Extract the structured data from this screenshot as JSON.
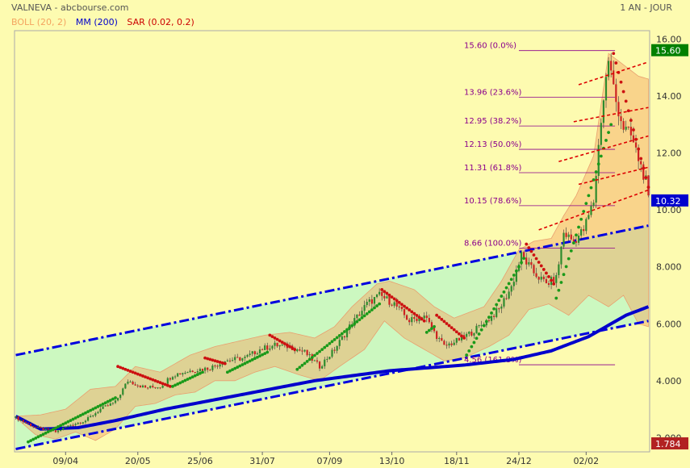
{
  "header": {
    "title": "VALNEVA - abcbourse.com",
    "period": "1 AN - JOUR"
  },
  "legend": [
    {
      "label": "BOLL (20, 2)",
      "color": "#f4a460"
    },
    {
      "label": "MM (200)",
      "color": "#0000cc"
    },
    {
      "label": "SAR (0.02, 0.2)",
      "color": "#cc0000"
    }
  ],
  "chart_data": {
    "type": "candlestick",
    "ylim": [
      1.5,
      16.3
    ],
    "y_ticks": [
      "16.00",
      "14.00",
      "12.00",
      "10.00",
      "8.000",
      "6.000",
      "4.000",
      "2.000"
    ],
    "y_tick_values": [
      16,
      14,
      12,
      10,
      8,
      6,
      4,
      2
    ],
    "x_ticks": [
      "09/04",
      "20/05",
      "25/06",
      "31/07",
      "07/09",
      "13/10",
      "18/11",
      "24/12",
      "02/02"
    ],
    "x_tick_index": [
      20,
      49,
      74,
      99,
      126,
      151,
      177,
      202,
      229
    ],
    "n_sessions": 255,
    "close_key": [
      [
        0,
        2.7
      ],
      [
        8,
        2.35
      ],
      [
        16,
        2.2
      ],
      [
        22,
        2.45
      ],
      [
        28,
        2.6
      ],
      [
        34,
        3.0
      ],
      [
        40,
        3.25
      ],
      [
        45,
        4.0
      ],
      [
        52,
        3.75
      ],
      [
        58,
        3.8
      ],
      [
        63,
        4.2
      ],
      [
        70,
        4.35
      ],
      [
        78,
        4.45
      ],
      [
        84,
        4.7
      ],
      [
        92,
        4.8
      ],
      [
        98,
        5.1
      ],
      [
        104,
        5.25
      ],
      [
        110,
        5.2
      ],
      [
        116,
        5.0
      ],
      [
        122,
        4.5
      ],
      [
        128,
        5.1
      ],
      [
        134,
        5.9
      ],
      [
        141,
        6.7
      ],
      [
        146,
        7.0
      ],
      [
        152,
        6.7
      ],
      [
        158,
        6.1
      ],
      [
        164,
        6.3
      ],
      [
        168,
        5.7
      ],
      [
        172,
        5.2
      ],
      [
        177,
        5.4
      ],
      [
        183,
        5.7
      ],
      [
        189,
        6.1
      ],
      [
        194,
        6.5
      ],
      [
        199,
        7.3
      ],
      [
        203,
        8.4
      ],
      [
        208,
        7.8
      ],
      [
        213,
        7.4
      ],
      [
        217,
        7.6
      ],
      [
        220,
        9.2
      ],
      [
        224,
        8.9
      ],
      [
        228,
        9.3
      ],
      [
        232,
        10.3
      ],
      [
        235,
        13.2
      ],
      [
        238,
        15.3
      ],
      [
        241,
        13.8
      ],
      [
        244,
        12.9
      ],
      [
        247,
        12.6
      ],
      [
        250,
        11.8
      ],
      [
        253,
        11.0
      ],
      [
        254,
        10.32
      ]
    ],
    "mm200_key": [
      [
        0,
        2.75
      ],
      [
        10,
        2.3
      ],
      [
        25,
        2.35
      ],
      [
        40,
        2.6
      ],
      [
        60,
        3.0
      ],
      [
        90,
        3.5
      ],
      [
        120,
        4.0
      ],
      [
        150,
        4.35
      ],
      [
        180,
        4.55
      ],
      [
        200,
        4.75
      ],
      [
        215,
        5.05
      ],
      [
        230,
        5.55
      ],
      [
        245,
        6.3
      ],
      [
        254,
        6.6
      ]
    ],
    "boll_upper_key": [
      [
        0,
        2.75
      ],
      [
        10,
        2.8
      ],
      [
        20,
        3.0
      ],
      [
        30,
        3.7
      ],
      [
        40,
        3.8
      ],
      [
        48,
        4.5
      ],
      [
        58,
        4.3
      ],
      [
        70,
        4.9
      ],
      [
        80,
        5.2
      ],
      [
        90,
        5.4
      ],
      [
        100,
        5.6
      ],
      [
        110,
        5.7
      ],
      [
        120,
        5.5
      ],
      [
        128,
        5.9
      ],
      [
        135,
        6.6
      ],
      [
        145,
        7.4
      ],
      [
        150,
        7.5
      ],
      [
        160,
        7.2
      ],
      [
        168,
        6.6
      ],
      [
        176,
        6.2
      ],
      [
        188,
        6.6
      ],
      [
        195,
        7.5
      ],
      [
        202,
        8.6
      ],
      [
        208,
        8.9
      ],
      [
        215,
        9.0
      ],
      [
        220,
        9.8
      ],
      [
        225,
        10.5
      ],
      [
        232,
        11.9
      ],
      [
        238,
        15.5
      ],
      [
        244,
        15.1
      ],
      [
        250,
        14.7
      ],
      [
        254,
        14.6
      ]
    ],
    "boll_lower_key": [
      [
        0,
        2.7
      ],
      [
        8,
        2.1
      ],
      [
        16,
        1.95
      ],
      [
        24,
        2.2
      ],
      [
        32,
        1.9
      ],
      [
        40,
        2.3
      ],
      [
        48,
        3.1
      ],
      [
        56,
        3.2
      ],
      [
        64,
        3.5
      ],
      [
        72,
        3.6
      ],
      [
        80,
        4.0
      ],
      [
        88,
        4.0
      ],
      [
        96,
        4.3
      ],
      [
        104,
        4.5
      ],
      [
        114,
        4.2
      ],
      [
        122,
        4.0
      ],
      [
        130,
        4.5
      ],
      [
        140,
        5.1
      ],
      [
        148,
        6.1
      ],
      [
        156,
        5.5
      ],
      [
        164,
        5.1
      ],
      [
        172,
        4.7
      ],
      [
        180,
        4.8
      ],
      [
        190,
        5.2
      ],
      [
        198,
        5.6
      ],
      [
        206,
        6.5
      ],
      [
        214,
        6.7
      ],
      [
        222,
        6.3
      ],
      [
        230,
        7.0
      ],
      [
        238,
        6.6
      ],
      [
        244,
        7.0
      ],
      [
        250,
        6.0
      ],
      [
        254,
        5.9
      ]
    ],
    "sar_segments": [
      {
        "trend": "up",
        "from": 5,
        "to": 40,
        "start": 1.85,
        "end": 3.4
      },
      {
        "trend": "down",
        "from": 41,
        "to": 62,
        "start": 4.5,
        "end": 3.8
      },
      {
        "trend": "up",
        "from": 63,
        "to": 75,
        "start": 3.8,
        "end": 4.3
      },
      {
        "trend": "down",
        "from": 76,
        "to": 84,
        "start": 4.8,
        "end": 4.6
      },
      {
        "trend": "up",
        "from": 85,
        "to": 101,
        "start": 4.3,
        "end": 5.0
      },
      {
        "trend": "down",
        "from": 102,
        "to": 112,
        "start": 5.6,
        "end": 5.1
      },
      {
        "trend": "up",
        "from": 113,
        "to": 146,
        "start": 4.4,
        "end": 6.7
      },
      {
        "trend": "down",
        "from": 147,
        "to": 164,
        "start": 7.2,
        "end": 6.1
      },
      {
        "trend": "up",
        "from": 165,
        "to": 168,
        "start": 5.7,
        "end": 5.9
      },
      {
        "trend": "down",
        "from": 169,
        "to": 180,
        "start": 6.3,
        "end": 5.5
      },
      {
        "trend": "up",
        "from": 181,
        "to": 204,
        "start": 4.9,
        "end": 8.3
      },
      {
        "trend": "down",
        "from": 205,
        "to": 216,
        "start": 8.8,
        "end": 7.4
      },
      {
        "trend": "up",
        "from": 217,
        "to": 239,
        "start": 6.9,
        "end": 13.0
      },
      {
        "trend": "down",
        "from": 240,
        "to": 254,
        "start": 15.5,
        "end": 10.8
      }
    ],
    "channel_lines": [
      {
        "style": "dashdot-blue",
        "from": [
          0,
          4.9
        ],
        "to": [
          254,
          9.45
        ]
      },
      {
        "style": "dashdot-blue",
        "from": [
          0,
          1.6
        ],
        "to": [
          254,
          6.1
        ]
      }
    ],
    "channel_fill_color": "#ccf8c0",
    "fib_levels": [
      {
        "label": "15.60  (0.0%)",
        "value": 15.6
      },
      {
        "label": "13.96  (23.6%)",
        "value": 13.96
      },
      {
        "label": "12.95  (38.2%)",
        "value": 12.95
      },
      {
        "label": "12.13  (50.0%)",
        "value": 12.13
      },
      {
        "label": "11.31  (61.8%)",
        "value": 11.31
      },
      {
        "label": "10.15  (78.6%)",
        "value": 10.15
      },
      {
        "label": "8.66  (100.0%)",
        "value": 8.66
      },
      {
        "label": "4.56  (161.8%)",
        "value": 4.56
      }
    ],
    "fib_range_index": [
      202,
      238
    ],
    "red_dashed_lines": [
      {
        "from": [
          210,
          9.3
        ],
        "to": [
          254,
          10.7
        ]
      },
      {
        "from": [
          218,
          11.7
        ],
        "to": [
          254,
          12.6
        ]
      },
      {
        "from": [
          224,
          13.1
        ],
        "to": [
          254,
          13.6
        ]
      },
      {
        "from": [
          226,
          14.4
        ],
        "to": [
          254,
          15.2
        ]
      },
      {
        "from": [
          226,
          10.9
        ],
        "to": [
          254,
          11.5
        ]
      }
    ],
    "price_tags": [
      {
        "label": "15.60",
        "value": 15.6,
        "color": "#008000"
      },
      {
        "label": "10.32",
        "value": 10.32,
        "color": "#0000cd"
      },
      {
        "label": "1.784",
        "value": 1.784,
        "color": "#b22222"
      }
    ]
  }
}
